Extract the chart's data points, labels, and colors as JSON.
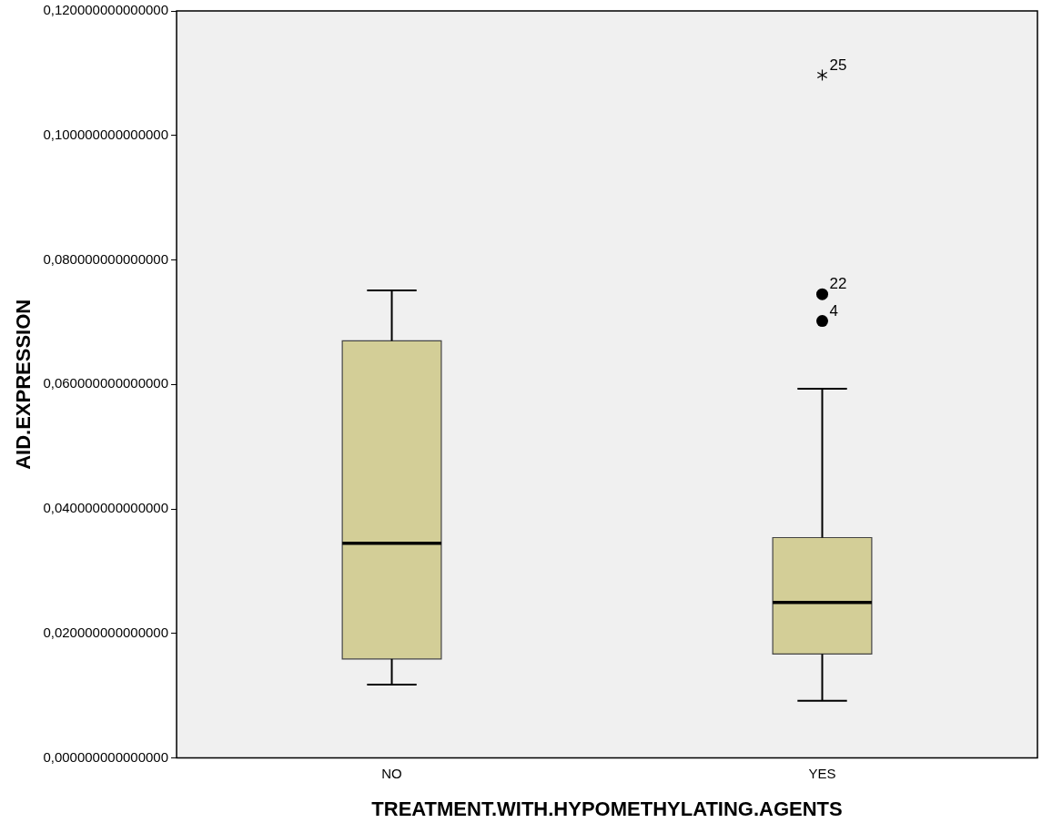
{
  "chart_data": {
    "type": "box",
    "xlabel": "TREATMENT.WITH.HYPOMETHYLATING.AGENTS",
    "ylabel": "AID.EXPRESSION",
    "categories": [
      "NO",
      "YES"
    ],
    "boxes": [
      {
        "low": 0.0118,
        "q1": 0.0159,
        "median": 0.0345,
        "q3": 0.067,
        "high": 0.0751
      },
      {
        "low": 0.0092,
        "q1": 0.0167,
        "median": 0.025,
        "q3": 0.0354,
        "high": 0.0593,
        "outliers": [
          0.1097,
          0.0745,
          0.0702
        ]
      }
    ],
    "color": "#d3ce97",
    "ylim": [
      0,
      0.12
    ],
    "yticks": [
      {
        "value": 0,
        "label": "0,000000000000000"
      },
      {
        "value": 0.02,
        "label": "0,020000000000000"
      },
      {
        "value": 0.04,
        "label": "0,040000000000000"
      },
      {
        "value": 0.06,
        "label": "0,060000000000000"
      },
      {
        "value": 0.08,
        "label": "0,080000000000000"
      },
      {
        "value": 0.1,
        "label": "0,100000000000000"
      },
      {
        "value": 0.12,
        "label": "0,120000000000000"
      }
    ],
    "grid": false,
    "legend": false,
    "annotations": [
      "25",
      "22",
      "4"
    ]
  }
}
